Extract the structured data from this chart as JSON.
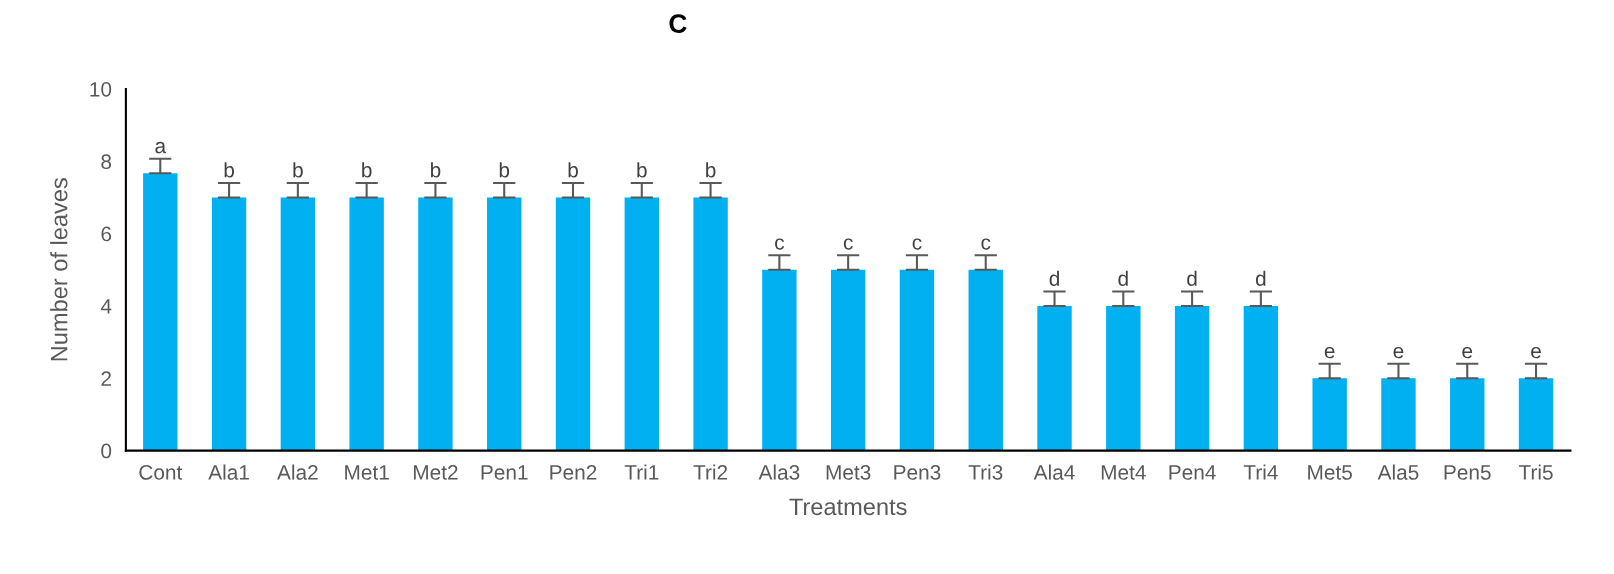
{
  "chart_data": {
    "type": "bar",
    "title": "C",
    "xlabel": "Treatments",
    "ylabel": "Number of leaves",
    "categories": [
      "Cont",
      "Ala1",
      "Ala2",
      "Met1",
      "Met2",
      "Pen1",
      "Pen2",
      "Tri1",
      "Tri2",
      "Ala3",
      "Met3",
      "Pen3",
      "Tri3",
      "Ala4",
      "Met4",
      "Pen4",
      "Tri4",
      "Met5",
      "Ala5",
      "Pen5",
      "Tri5"
    ],
    "series": [
      {
        "color": "#00b0f0",
        "values": [
          7.67,
          7,
          7,
          7,
          7,
          7,
          7,
          7,
          7,
          5,
          5,
          5,
          5,
          4,
          4,
          4,
          4,
          2,
          2,
          2,
          2
        ],
        "errors": [
          [
            7.67,
            8.07
          ],
          [
            7,
            7.4
          ],
          [
            7,
            7.4
          ],
          [
            7,
            7.4
          ],
          [
            7,
            7.4
          ],
          [
            7,
            7.4
          ],
          [
            7,
            7.4
          ],
          [
            7,
            7.4
          ],
          [
            7,
            7.4
          ],
          [
            5,
            5.4
          ],
          [
            5,
            5.4
          ],
          [
            5,
            5.4
          ],
          [
            5,
            5.4
          ],
          [
            4,
            4.4
          ],
          [
            4,
            4.4
          ],
          [
            4,
            4.4
          ],
          [
            4,
            4.4
          ],
          [
            2,
            2.4
          ],
          [
            2,
            2.4
          ],
          [
            2,
            2.4
          ],
          [
            2,
            2.4
          ]
        ]
      }
    ],
    "annotations": [
      {
        "text": "a",
        "x": "Cont",
        "y": 8.07
      },
      {
        "text": "b",
        "x": "Ala1",
        "y": 7.4
      },
      {
        "text": "b",
        "x": "Ala2",
        "y": 7.4
      },
      {
        "text": "b",
        "x": "Met1",
        "y": 7.4
      },
      {
        "text": "b",
        "x": "Met2",
        "y": 7.4
      },
      {
        "text": "b",
        "x": "Pen1",
        "y": 7.4
      },
      {
        "text": "b",
        "x": "Pen2",
        "y": 7.4
      },
      {
        "text": "b",
        "x": "Tri1",
        "y": 7.4
      },
      {
        "text": "b",
        "x": "Tri2",
        "y": 7.4
      },
      {
        "text": "c",
        "x": "Ala3",
        "y": 5.4
      },
      {
        "text": "c",
        "x": "Met3",
        "y": 5.4
      },
      {
        "text": "c",
        "x": "Pen3",
        "y": 5.4
      },
      {
        "text": "c",
        "x": "Tri3",
        "y": 5.4
      },
      {
        "text": "d",
        "x": "Ala4",
        "y": 4.4
      },
      {
        "text": "d",
        "x": "Met4",
        "y": 4.4
      },
      {
        "text": "d",
        "x": "Pen4",
        "y": 4.4
      },
      {
        "text": "d",
        "x": "Tri4",
        "y": 4.4
      },
      {
        "text": "e",
        "x": "Met5",
        "y": 2.4
      },
      {
        "text": "e",
        "x": "Ala5",
        "y": 2.4
      },
      {
        "text": "e",
        "x": "Pen5",
        "y": 2.4
      },
      {
        "text": "e",
        "x": "Tri5",
        "y": 2.4
      }
    ],
    "ylim": [
      0,
      10
    ],
    "yticks": [
      0,
      2,
      4,
      6,
      8,
      10
    ],
    "grid": false,
    "legend": false
  }
}
